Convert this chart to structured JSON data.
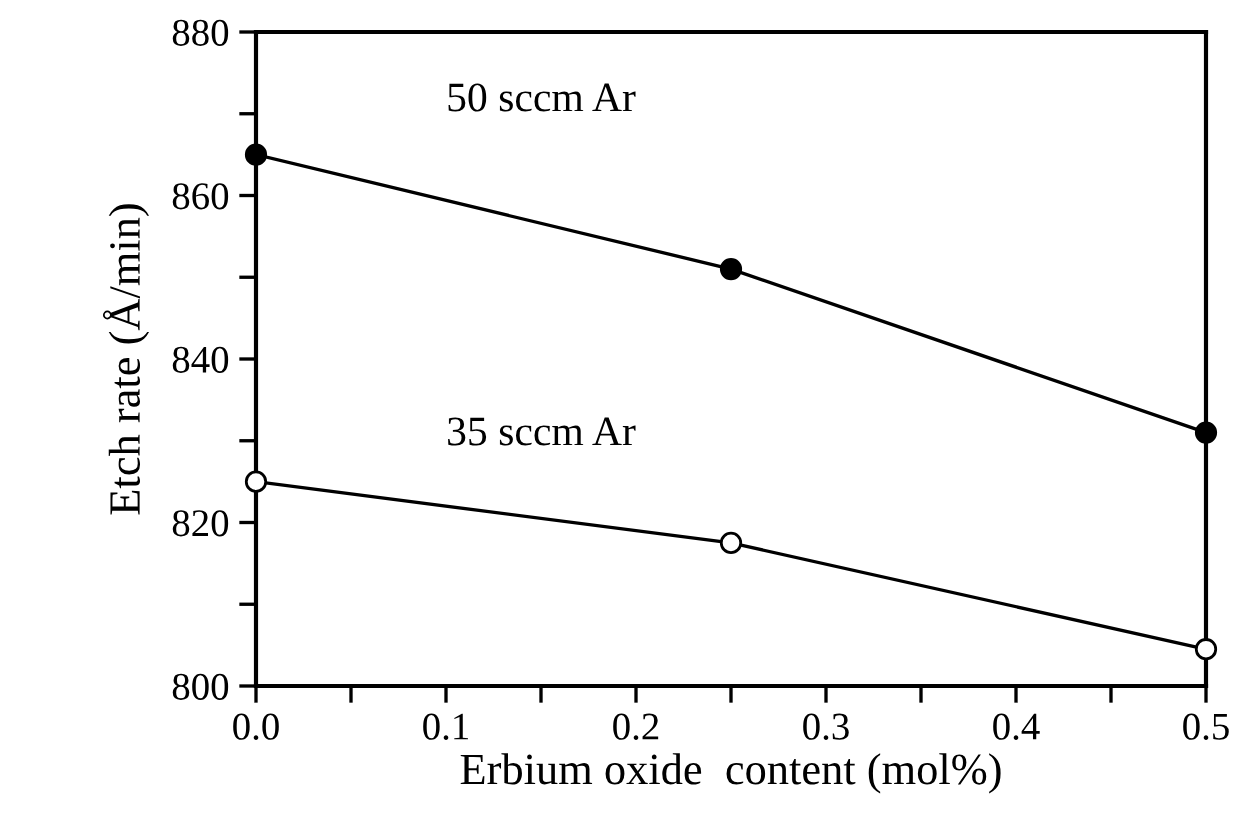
{
  "chart_data": {
    "type": "line",
    "xlabel": "Erbium oxide  content (mol%)",
    "ylabel": "Etch rate (Å/min)",
    "x": [
      0.0,
      0.25,
      0.5
    ],
    "series": [
      {
        "name": "50 sccm Ar",
        "color": "#000000",
        "values": [
          865,
          851,
          831
        ]
      },
      {
        "name": "35 sccm Ar",
        "color": "#000000",
        "values": [
          825,
          817.5,
          804.5
        ]
      }
    ],
    "xlim": [
      0.0,
      0.5
    ],
    "ylim": [
      800,
      880
    ],
    "xticks": [
      {
        "value": 0.0,
        "label": "0.0"
      },
      {
        "value": 0.05,
        "label": null
      },
      0.1,
      {
        "value": 0.15,
        "label": null
      },
      0.2,
      {
        "value": 0.25,
        "label": null
      },
      0.3,
      {
        "value": 0.35,
        "label": null
      },
      0.4,
      {
        "value": 0.45,
        "label": null
      },
      0.5
    ],
    "yticks": [
      800,
      {
        "value": 810,
        "label": null
      },
      820,
      {
        "value": 830,
        "label": null
      },
      840,
      {
        "value": 850,
        "label": null
      },
      860,
      {
        "value": 870,
        "label": null
      },
      880
    ],
    "marker": "circle",
    "grid": false,
    "legend": false,
    "line_style": "solid"
  }
}
